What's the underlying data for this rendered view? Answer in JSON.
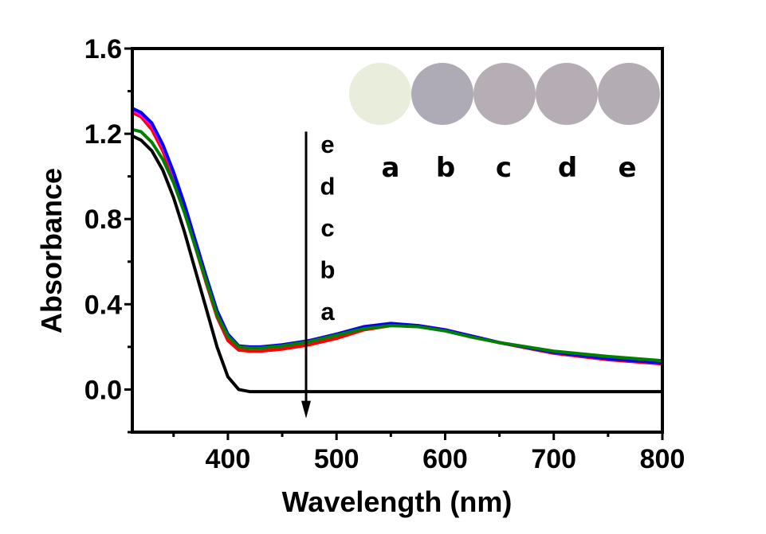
{
  "chart_data": {
    "type": "line",
    "title": "",
    "xlabel": "Wavelength (nm)",
    "ylabel": "Absorbance",
    "xlim": [
      312,
      800
    ],
    "ylim": [
      -0.2,
      1.6
    ],
    "xticks": [
      400,
      500,
      600,
      700,
      800
    ],
    "xtick_labels": [
      "400",
      "500",
      "600",
      "700",
      "800"
    ],
    "x_minor_ticks": [
      350,
      450,
      550,
      650,
      750
    ],
    "yticks": [
      0.0,
      0.4,
      0.8,
      1.2,
      1.6
    ],
    "ytick_labels": [
      "0.0",
      "0.4",
      "0.8",
      "1.2",
      "1.6"
    ],
    "y_minor_ticks": [
      -0.2,
      0.2,
      0.6,
      1.0,
      1.4
    ],
    "grid": false,
    "legend": "none",
    "series": [
      {
        "name": "a",
        "color": "#000000",
        "x": [
          312,
          320,
          330,
          340,
          350,
          360,
          370,
          380,
          390,
          400,
          410,
          420,
          430,
          450,
          500,
          550,
          600,
          650,
          700,
          750,
          800
        ],
        "y": [
          1.19,
          1.17,
          1.12,
          1.03,
          0.9,
          0.74,
          0.56,
          0.38,
          0.2,
          0.06,
          0.0,
          -0.01,
          -0.01,
          -0.01,
          -0.01,
          -0.01,
          -0.01,
          -0.01,
          -0.01,
          -0.01,
          -0.01
        ]
      },
      {
        "name": "b",
        "color": "#ff0000",
        "x": [
          312,
          320,
          330,
          340,
          350,
          360,
          370,
          380,
          390,
          400,
          410,
          420,
          430,
          450,
          475,
          500,
          525,
          550,
          575,
          600,
          625,
          650,
          700,
          750,
          800
        ],
        "y": [
          1.3,
          1.28,
          1.22,
          1.12,
          0.99,
          0.84,
          0.67,
          0.5,
          0.34,
          0.23,
          0.185,
          0.18,
          0.18,
          0.19,
          0.21,
          0.24,
          0.28,
          0.3,
          0.3,
          0.28,
          0.25,
          0.22,
          0.17,
          0.14,
          0.12
        ]
      },
      {
        "name": "c",
        "color": "#ff00ff",
        "x": [
          312,
          320,
          330,
          340,
          350,
          360,
          370,
          380,
          390,
          400,
          410,
          420,
          430,
          450,
          475,
          500,
          525,
          550,
          575,
          600,
          625,
          650,
          700,
          750,
          800
        ],
        "y": [
          1.31,
          1.29,
          1.24,
          1.14,
          1.01,
          0.86,
          0.69,
          0.52,
          0.36,
          0.25,
          0.2,
          0.195,
          0.195,
          0.205,
          0.225,
          0.255,
          0.29,
          0.305,
          0.3,
          0.28,
          0.25,
          0.22,
          0.175,
          0.145,
          0.125
        ]
      },
      {
        "name": "d",
        "color": "#0000ff",
        "x": [
          312,
          320,
          330,
          340,
          350,
          360,
          370,
          380,
          390,
          400,
          410,
          420,
          430,
          450,
          475,
          500,
          525,
          550,
          575,
          600,
          625,
          650,
          700,
          750,
          800
        ],
        "y": [
          1.32,
          1.3,
          1.25,
          1.15,
          1.02,
          0.87,
          0.7,
          0.53,
          0.37,
          0.26,
          0.205,
          0.2,
          0.2,
          0.21,
          0.23,
          0.26,
          0.295,
          0.31,
          0.3,
          0.28,
          0.25,
          0.22,
          0.175,
          0.145,
          0.125
        ]
      },
      {
        "name": "e",
        "color": "#008000",
        "x": [
          312,
          320,
          330,
          340,
          350,
          360,
          370,
          380,
          390,
          400,
          410,
          420,
          430,
          450,
          475,
          500,
          525,
          550,
          575,
          600,
          625,
          650,
          700,
          750,
          800
        ],
        "y": [
          1.22,
          1.21,
          1.16,
          1.08,
          0.97,
          0.83,
          0.67,
          0.51,
          0.35,
          0.25,
          0.2,
          0.195,
          0.195,
          0.205,
          0.225,
          0.255,
          0.285,
          0.3,
          0.295,
          0.275,
          0.245,
          0.22,
          0.18,
          0.155,
          0.135
        ]
      }
    ],
    "annotations": {
      "arrow": {
        "direction": "down",
        "x": 470,
        "y_from": 1.21,
        "y_to": -0.12
      },
      "arrow_labels": [
        "e",
        "d",
        "c",
        "b",
        "a"
      ],
      "inset_samples": [
        {
          "label": "a",
          "color": "#e9eddc"
        },
        {
          "label": "b",
          "color": "#aeaab6"
        },
        {
          "label": "c",
          "color": "#b6aeb4"
        },
        {
          "label": "d",
          "color": "#b5adb3"
        },
        {
          "label": "e",
          "color": "#b4acb3"
        }
      ]
    }
  }
}
